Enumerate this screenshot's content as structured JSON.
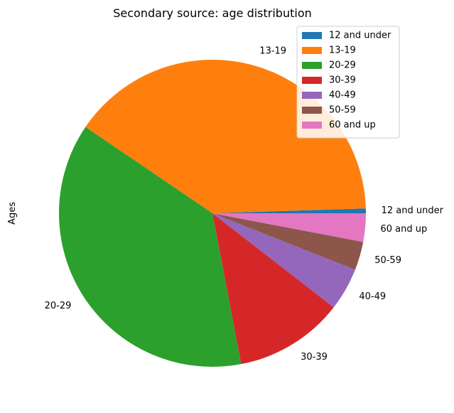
{
  "chart_data": {
    "type": "pie",
    "title": "Secondary source: age distribution",
    "ylabel": "Ages",
    "categories": [
      "12 and under",
      "13-19",
      "20-29",
      "30-39",
      "40-49",
      "50-59",
      "60 and up"
    ],
    "values": [
      0.5,
      40.0,
      37.5,
      11.5,
      4.5,
      3.0,
      3.0
    ],
    "value_unit": "percent (estimated)",
    "colors": [
      "#1f77b4",
      "#ff7f0e",
      "#2ca02c",
      "#d62728",
      "#9467bd",
      "#8c564b",
      "#e377c2"
    ],
    "start_angle_deg": 0,
    "direction": "counterclockwise",
    "legend": {
      "placement": "top-right",
      "entries": [
        "12 and under",
        "13-19",
        "20-29",
        "30-39",
        "40-49",
        "50-59",
        "60 and up"
      ]
    }
  }
}
